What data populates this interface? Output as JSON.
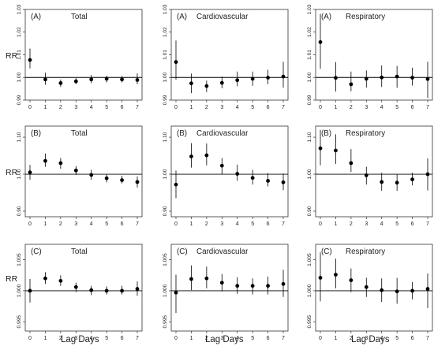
{
  "chart_data": {
    "type": "scatter",
    "description": "3x3 grid of point estimates with 95% error bars (relative risk) by lag day",
    "ylabel": "RR",
    "xlabel": "Lag Days",
    "x_ticks": [
      0,
      1,
      2,
      3,
      4,
      5,
      6,
      7
    ],
    "reference_line": 1.0,
    "rows": [
      {
        "row": "A",
        "ylim": [
          0.99,
          1.03
        ],
        "y_ticks": [
          "0.99",
          "1.00",
          "1.01",
          "1.02",
          "1.03"
        ],
        "panels": [
          {
            "label": "(A)",
            "title": "Total",
            "points": [
              {
                "x": 0,
                "y": 1.0077,
                "lo": 1.004,
                "hi": 1.0128
              },
              {
                "x": 1,
                "y": 0.9991,
                "lo": 0.9968,
                "hi": 1.0021
              },
              {
                "x": 2,
                "y": 0.9975,
                "lo": 0.9958,
                "hi": 0.9991
              },
              {
                "x": 3,
                "y": 0.9983,
                "lo": 0.997,
                "hi": 0.9997
              },
              {
                "x": 4,
                "y": 0.9991,
                "lo": 0.9975,
                "hi": 1.0011
              },
              {
                "x": 5,
                "y": 0.9994,
                "lo": 0.9978,
                "hi": 1.0008
              },
              {
                "x": 6,
                "y": 0.9991,
                "lo": 0.9978,
                "hi": 1.0006
              },
              {
                "x": 7,
                "y": 0.9989,
                "lo": 0.997,
                "hi": 1.0018
              }
            ]
          },
          {
            "label": "(A)",
            "title": "Cardiovascular",
            "points": [
              {
                "x": 0,
                "y": 1.0068,
                "lo": 0.999,
                "hi": 1.0163
              },
              {
                "x": 1,
                "y": 0.9974,
                "lo": 0.9931,
                "hi": 1.0017
              },
              {
                "x": 2,
                "y": 0.9962,
                "lo": 0.9935,
                "hi": 0.9986
              },
              {
                "x": 3,
                "y": 0.9976,
                "lo": 0.9952,
                "hi": 1.0004
              },
              {
                "x": 4,
                "y": 0.9988,
                "lo": 0.9961,
                "hi": 1.0026
              },
              {
                "x": 5,
                "y": 0.9994,
                "lo": 0.9963,
                "hi": 1.0026
              },
              {
                "x": 6,
                "y": 0.9999,
                "lo": 0.997,
                "hi": 1.0034
              },
              {
                "x": 7,
                "y": 1.0004,
                "lo": 0.9955,
                "hi": 1.0069
              }
            ]
          },
          {
            "label": "(A)",
            "title": "Respiratory",
            "points": [
              {
                "x": 0,
                "y": 1.0156,
                "lo": 1.0038,
                "hi": 1.0281
              },
              {
                "x": 1,
                "y": 0.9998,
                "lo": 0.9938,
                "hi": 1.0068
              },
              {
                "x": 2,
                "y": 0.997,
                "lo": 0.9939,
                "hi": 1.0026
              },
              {
                "x": 3,
                "y": 0.9994,
                "lo": 0.9955,
                "hi": 1.0031
              },
              {
                "x": 4,
                "y": 1.0,
                "lo": 0.9958,
                "hi": 1.0053
              },
              {
                "x": 5,
                "y": 1.0004,
                "lo": 0.9954,
                "hi": 1.0051
              },
              {
                "x": 6,
                "y": 0.9999,
                "lo": 0.9964,
                "hi": 1.0043
              },
              {
                "x": 7,
                "y": 0.9993,
                "lo": 0.9909,
                "hi": 1.0069
              }
            ]
          }
        ]
      },
      {
        "row": "B",
        "ylim": [
          0.885,
          1.13
        ],
        "y_ticks": [
          "0.90",
          "1.00",
          "1.10"
        ],
        "y_tick_values": [
          0.9,
          1.0,
          1.1
        ],
        "panels": [
          {
            "label": "(B)",
            "title": "Total",
            "points": [
              {
                "x": 0,
                "y": 1.005,
                "lo": 0.985,
                "hi": 1.025
              },
              {
                "x": 1,
                "y": 1.036,
                "lo": 1.02,
                "hi": 1.056
              },
              {
                "x": 2,
                "y": 1.03,
                "lo": 1.015,
                "hi": 1.044
              },
              {
                "x": 3,
                "y": 1.01,
                "lo": 0.998,
                "hi": 1.022
              },
              {
                "x": 4,
                "y": 0.998,
                "lo": 0.985,
                "hi": 1.012
              },
              {
                "x": 5,
                "y": 0.989,
                "lo": 0.978,
                "hi": 1.0
              },
              {
                "x": 6,
                "y": 0.984,
                "lo": 0.975,
                "hi": 0.996
              },
              {
                "x": 7,
                "y": 0.979,
                "lo": 0.964,
                "hi": 0.994
              }
            ]
          },
          {
            "label": "(B)",
            "title": "Cardiovascular",
            "points": [
              {
                "x": 0,
                "y": 0.972,
                "lo": 0.935,
                "hi": 1.01
              },
              {
                "x": 1,
                "y": 1.048,
                "lo": 1.018,
                "hi": 1.084
              },
              {
                "x": 2,
                "y": 1.051,
                "lo": 1.024,
                "hi": 1.083
              },
              {
                "x": 3,
                "y": 1.023,
                "lo": 1.0,
                "hi": 1.044
              },
              {
                "x": 4,
                "y": 1.001,
                "lo": 0.982,
                "hi": 1.026
              },
              {
                "x": 5,
                "y": 0.99,
                "lo": 0.972,
                "hi": 1.012
              },
              {
                "x": 6,
                "y": 0.982,
                "lo": 0.967,
                "hi": 1.003
              },
              {
                "x": 7,
                "y": 0.978,
                "lo": 0.957,
                "hi": 1.002
              }
            ]
          },
          {
            "label": "(B)",
            "title": "Respiratory",
            "points": [
              {
                "x": 0,
                "y": 1.07,
                "lo": 1.024,
                "hi": 1.12
              },
              {
                "x": 1,
                "y": 1.064,
                "lo": 1.028,
                "hi": 1.108
              },
              {
                "x": 2,
                "y": 1.03,
                "lo": 1.006,
                "hi": 1.068
              },
              {
                "x": 3,
                "y": 0.997,
                "lo": 0.972,
                "hi": 1.02
              },
              {
                "x": 4,
                "y": 0.979,
                "lo": 0.955,
                "hi": 1.004
              },
              {
                "x": 5,
                "y": 0.977,
                "lo": 0.955,
                "hi": 1.0
              },
              {
                "x": 6,
                "y": 0.986,
                "lo": 0.97,
                "hi": 1.004
              },
              {
                "x": 7,
                "y": 1.0,
                "lo": 0.956,
                "hi": 1.043
              }
            ]
          }
        ]
      },
      {
        "row": "C",
        "ylim": [
          0.9935,
          1.0075
        ],
        "y_ticks": [
          "0.995",
          "1.000",
          "1.005"
        ],
        "y_tick_values": [
          0.995,
          1.0,
          1.005
        ],
        "panels": [
          {
            "label": "(C)",
            "title": "Total",
            "points": [
              {
                "x": 0,
                "y": 1.0,
                "lo": 0.9981,
                "hi": 1.0019
              },
              {
                "x": 1,
                "y": 1.002,
                "lo": 1.0011,
                "hi": 1.003
              },
              {
                "x": 2,
                "y": 1.0016,
                "lo": 1.0008,
                "hi": 1.0025
              },
              {
                "x": 3,
                "y": 1.0006,
                "lo": 0.9998,
                "hi": 1.0013
              },
              {
                "x": 4,
                "y": 1.0001,
                "lo": 0.9993,
                "hi": 1.0008
              },
              {
                "x": 5,
                "y": 1.0,
                "lo": 0.9994,
                "hi": 1.0007
              },
              {
                "x": 6,
                "y": 1.0,
                "lo": 0.9994,
                "hi": 1.0008
              },
              {
                "x": 7,
                "y": 1.0003,
                "lo": 0.9992,
                "hi": 1.0015
              }
            ]
          },
          {
            "label": "(C)",
            "title": "Cardiovascular",
            "points": [
              {
                "x": 0,
                "y": 0.9997,
                "lo": 0.9964,
                "hi": 1.0026
              },
              {
                "x": 1,
                "y": 1.0019,
                "lo": 1.0001,
                "hi": 1.0041
              },
              {
                "x": 2,
                "y": 1.002,
                "lo": 1.0004,
                "hi": 1.0039
              },
              {
                "x": 3,
                "y": 1.0013,
                "lo": 0.9999,
                "hi": 1.0027
              },
              {
                "x": 4,
                "y": 1.0008,
                "lo": 0.9995,
                "hi": 1.0022
              },
              {
                "x": 5,
                "y": 1.0008,
                "lo": 0.9994,
                "hi": 1.002
              },
              {
                "x": 6,
                "y": 1.0008,
                "lo": 0.9994,
                "hi": 1.0023
              },
              {
                "x": 7,
                "y": 1.0011,
                "lo": 0.999,
                "hi": 1.0034
              }
            ]
          },
          {
            "label": "(C)",
            "title": "Respiratory",
            "points": [
              {
                "x": 0,
                "y": 1.0021,
                "lo": 0.9983,
                "hi": 1.0062
              },
              {
                "x": 1,
                "y": 1.0026,
                "lo": 1.0004,
                "hi": 1.0052
              },
              {
                "x": 2,
                "y": 1.0017,
                "lo": 0.9998,
                "hi": 1.0036
              },
              {
                "x": 3,
                "y": 1.0006,
                "lo": 0.999,
                "hi": 1.0021
              },
              {
                "x": 4,
                "y": 1.0001,
                "lo": 0.9982,
                "hi": 1.002
              },
              {
                "x": 5,
                "y": 0.9999,
                "lo": 0.9979,
                "hi": 1.0021
              },
              {
                "x": 6,
                "y": 1.0,
                "lo": 0.9986,
                "hi": 1.0014
              },
              {
                "x": 7,
                "y": 1.0003,
                "lo": 0.9972,
                "hi": 1.0028
              }
            ]
          }
        ]
      }
    ]
  }
}
